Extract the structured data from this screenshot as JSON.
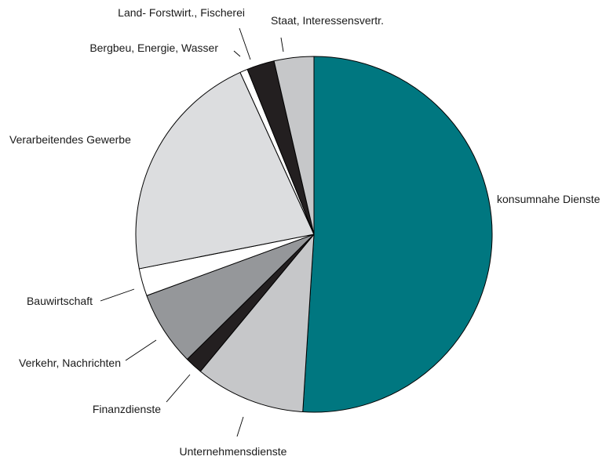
{
  "chart_data": {
    "type": "pie",
    "title": "",
    "start": "top, clockwise",
    "slices": [
      {
        "label": "konsumnahe Dienste",
        "value": 51.0,
        "color": "#007780"
      },
      {
        "label": "Unternehmensdienste",
        "value": 10.0,
        "color": "#c6c7c9"
      },
      {
        "label": "Finanzdienste",
        "value": 1.6,
        "color": "#231f20"
      },
      {
        "label": "Verkehr, Nachrichten",
        "value": 6.8,
        "color": "#95979a"
      },
      {
        "label": "Bauwirtschaft",
        "value": 2.5,
        "color": "#ffffff"
      },
      {
        "label": "Verarbeitendes Gewerbe",
        "value": 21.3,
        "color": "#dcdddf"
      },
      {
        "label": "Bergbeu, Energie, Wasser",
        "value": 0.7,
        "color": "#ffffff"
      },
      {
        "label": "Land- Forstwirt., Fischerei",
        "value": 2.5,
        "color": "#231f20"
      },
      {
        "label": "Staat, Interessensvertr.",
        "value": 3.6,
        "color": "#c6c7c9"
      }
    ]
  }
}
